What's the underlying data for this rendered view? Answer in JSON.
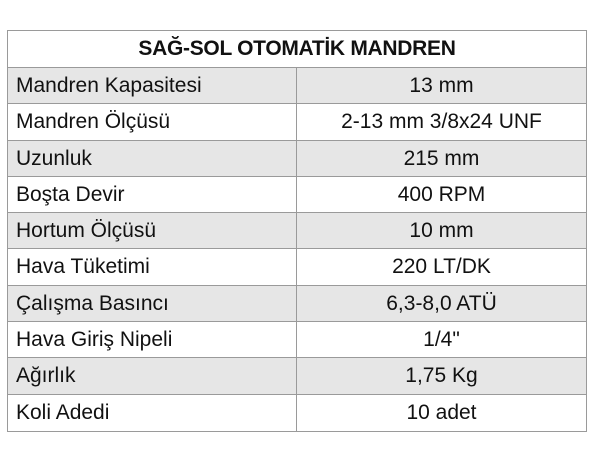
{
  "table": {
    "title": "SAĞ-SOL OTOMATİK MANDREN",
    "rows": [
      [
        "Mandren Kapasitesi",
        "13 mm"
      ],
      [
        "Mandren Ölçüsü",
        "2-13 mm 3/8x24 UNF"
      ],
      [
        "Uzunluk",
        "215 mm"
      ],
      [
        "Boşta Devir",
        "400 RPM"
      ],
      [
        "Hortum Ölçüsü",
        "10 mm"
      ],
      [
        "Hava Tüketimi",
        "220 LT/DK"
      ],
      [
        "Çalışma Basıncı",
        "6,3-8,0 ATÜ"
      ],
      [
        "Hava Giriş Nipeli",
        "1/4\""
      ],
      [
        "Ağırlık",
        "1,75 Kg"
      ],
      [
        "Koli Adedi",
        "10 adet"
      ]
    ]
  }
}
